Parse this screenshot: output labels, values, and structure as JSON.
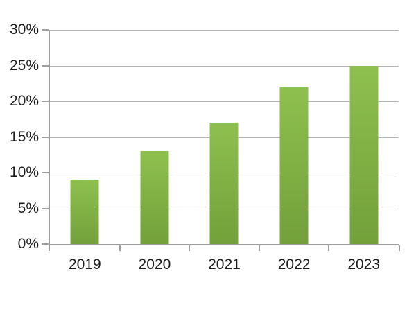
{
  "chart_data": {
    "type": "bar",
    "title": "",
    "xlabel": "",
    "ylabel": "",
    "categories": [
      "2019",
      "2020",
      "2021",
      "2022",
      "2023"
    ],
    "values": [
      9,
      13,
      17,
      22,
      25
    ],
    "y_ticks": [
      0,
      5,
      10,
      15,
      20,
      25,
      30
    ],
    "y_tick_labels": [
      "0%",
      "5%",
      "10%",
      "15%",
      "20%",
      "25%",
      "30%"
    ],
    "ylim": [
      0,
      30
    ],
    "grid": true,
    "legend": false,
    "colors": {
      "bar_gradient_top": "#8ec04f",
      "bar_gradient_bottom": "#73a03a",
      "gridline": "#b3b3b3",
      "axis": "#9e9e9e",
      "label_text": "#1c1c1c",
      "background": "#ffffff"
    }
  }
}
